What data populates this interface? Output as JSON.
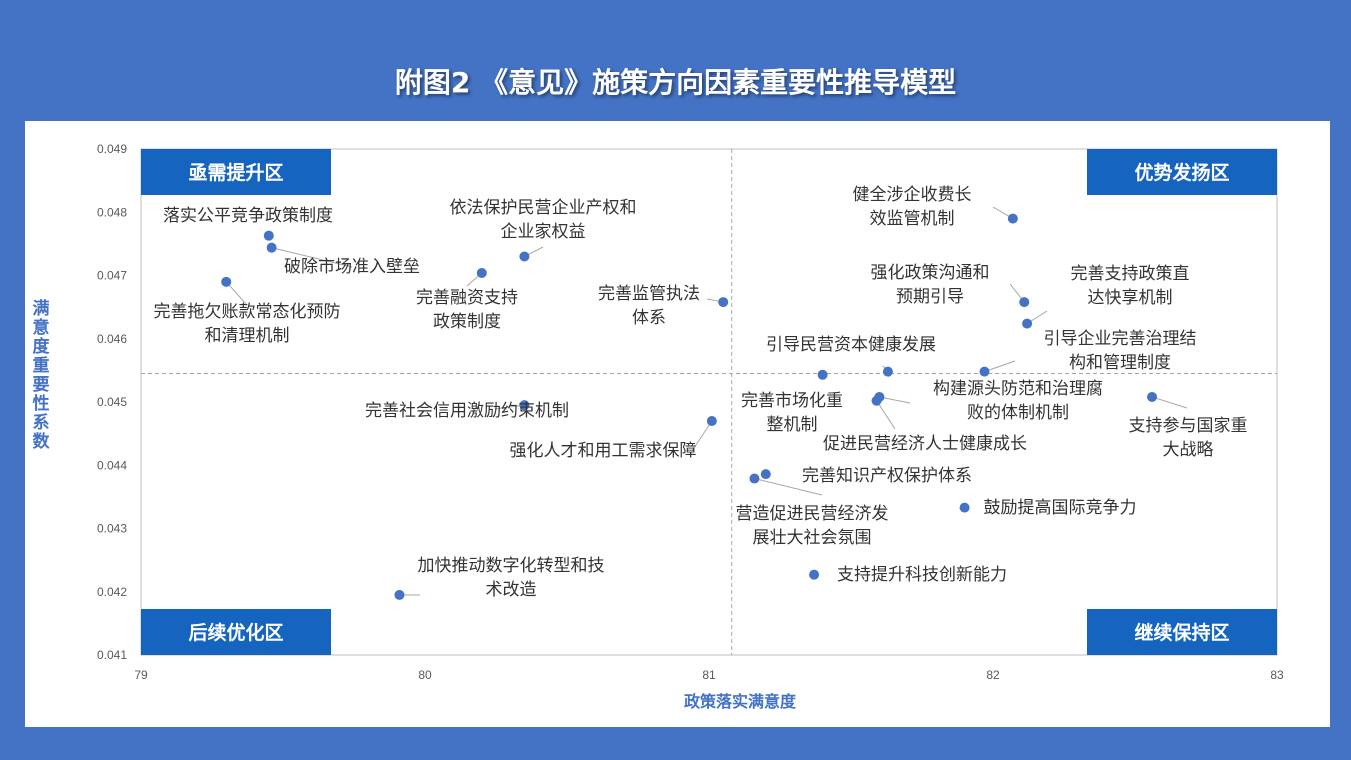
{
  "page": {
    "title": "附图2 《意见》施策方向因素重要性推导模型",
    "colors": {
      "background": "#4472C4",
      "accent": "#1565C0",
      "point": "#4472C4",
      "text": "#333333",
      "axis_text": "#595959"
    }
  },
  "chart_data": {
    "type": "scatter",
    "title": "附图2 《意见》施策方向因素重要性推导模型",
    "xlabel": "政策落实满意度",
    "ylabel": "满意度重要性系数",
    "xlim": [
      79,
      83
    ],
    "ylim": [
      0.041,
      0.049
    ],
    "xticks": [
      "79",
      "80",
      "81",
      "82",
      "83"
    ],
    "yticks": [
      "0.041",
      "0.042",
      "0.043",
      "0.044",
      "0.045",
      "0.046",
      "0.047",
      "0.048",
      "0.049"
    ],
    "divider": {
      "x": 81.08,
      "y": 0.04545
    },
    "grid": false,
    "quadrants": [
      {
        "label": "亟需提升区",
        "position": "top-left"
      },
      {
        "label": "优势发扬区",
        "position": "top-right"
      },
      {
        "label": "后续优化区",
        "position": "bottom-left"
      },
      {
        "label": "继续保持区",
        "position": "bottom-right"
      }
    ],
    "points": [
      {
        "label": "落实公平竞争政策制度",
        "x": 79.45,
        "y": 0.04763
      },
      {
        "label": "破除市场准入壁垒",
        "x": 79.46,
        "y": 0.04744
      },
      {
        "label": "完善拖欠账款常态化预防和清理机制",
        "x": 79.3,
        "y": 0.0469
      },
      {
        "label": "依法保护民营企业产权和企业家权益",
        "x": 80.35,
        "y": 0.0473
      },
      {
        "label": "完善融资支持政策制度",
        "x": 80.2,
        "y": 0.04704
      },
      {
        "label": "完善监管执法体系",
        "x": 81.05,
        "y": 0.04658
      },
      {
        "label": "完善社会信用激励约束机制",
        "x": 80.35,
        "y": 0.04495
      },
      {
        "label": "强化人才和用工需求保障",
        "x": 81.01,
        "y": 0.0447
      },
      {
        "label": "加快推动数字化转型和技术改造",
        "x": 79.91,
        "y": 0.04195
      },
      {
        "label": "健全涉企收费长效监管机制",
        "x": 82.07,
        "y": 0.0479
      },
      {
        "label": "强化政策沟通和预期引导",
        "x": 82.11,
        "y": 0.04658
      },
      {
        "label": "完善支持政策直达快享机制",
        "x": 82.12,
        "y": 0.04624
      },
      {
        "label": "引导民营资本健康发展",
        "x": 81.63,
        "y": 0.04548
      },
      {
        "label": "引导企业完善治理结构和管理制度",
        "x": 81.97,
        "y": 0.04548
      },
      {
        "label": "完善市场化重整机制",
        "x": 81.4,
        "y": 0.04543
      },
      {
        "label": "构建源头防范和治理腐败的体制机制",
        "x": 81.6,
        "y": 0.04508
      },
      {
        "label": "促进民营经济人士健康成长",
        "x": 81.59,
        "y": 0.04502
      },
      {
        "label": "支持参与国家重大战略",
        "x": 82.56,
        "y": 0.04508
      },
      {
        "label": "完善知识产权保护体系",
        "x": 81.2,
        "y": 0.04386
      },
      {
        "label": "营造促进民营经济发展壮大社会氛围",
        "x": 81.16,
        "y": 0.04379
      },
      {
        "label": "鼓励提高国际竞争力",
        "x": 81.9,
        "y": 0.04333
      },
      {
        "label": "支持提升科技创新能力",
        "x": 81.37,
        "y": 0.04227
      }
    ]
  }
}
